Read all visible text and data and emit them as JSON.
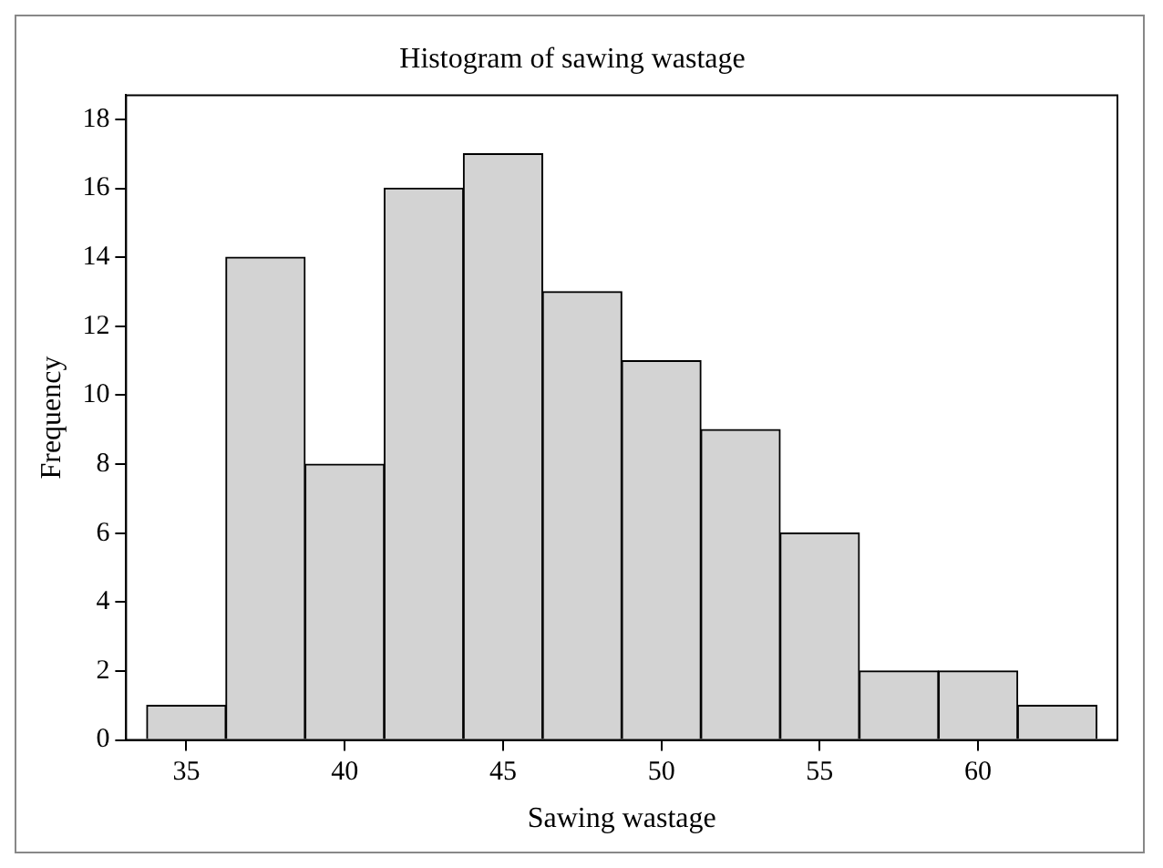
{
  "chart_data": {
    "type": "histogram",
    "title": "Histogram of sawing wastage",
    "xlabel": "Sawing wastage",
    "ylabel": "Frequency",
    "bins": [
      33.75,
      36.25,
      38.75,
      41.25,
      43.75,
      46.25,
      48.75,
      51.25,
      53.75,
      56.25,
      58.75,
      61.25,
      63.75
    ],
    "values": [
      1,
      14,
      8,
      16,
      17,
      13,
      11,
      9,
      6,
      2,
      2,
      1
    ],
    "color": "#d3d3d3",
    "xlim": [
      33.1,
      64.4
    ],
    "xticks": [
      35,
      40,
      45,
      50,
      55,
      60
    ],
    "ylim": [
      0,
      18.7
    ],
    "yticks": [
      0,
      2,
      4,
      6,
      8,
      10,
      12,
      14,
      16,
      18
    ],
    "grid": false,
    "legend": false
  }
}
